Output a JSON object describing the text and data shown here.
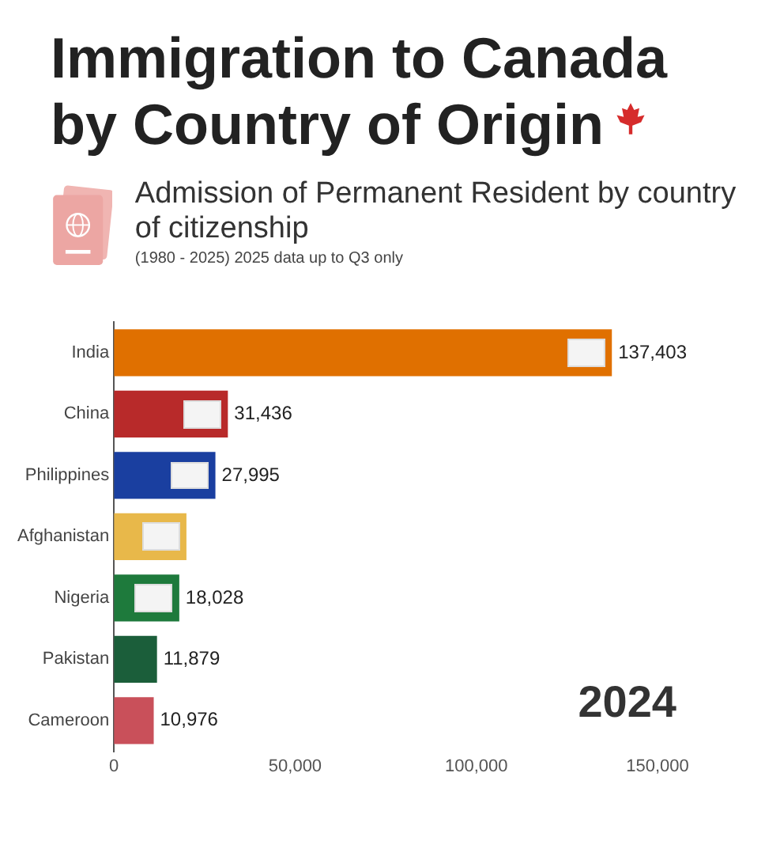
{
  "chart_data": {
    "type": "bar",
    "title": "Immigration to Canada by Country of Origin",
    "subtitle": "Admission of Permanent Resident by country of citizenship",
    "orientation": "horizontal",
    "categories": [
      "India",
      "China",
      "Philippines",
      "Afghanistan",
      "Nigeria",
      "Pakistan",
      "Cameroon"
    ],
    "values": [
      137403,
      31436,
      27995,
      20000,
      18028,
      11879,
      10976
    ],
    "colors": [
      "#e07000",
      "#b82a2a",
      "#1a3fa0",
      "#e8b84a",
      "#1e7a3c",
      "#1b5e3a",
      "#c9505a"
    ],
    "value_labels": [
      "137,403",
      "31,436",
      "27,995",
      null,
      "18,028",
      "11,879",
      "10,976"
    ],
    "xlim": [
      0,
      150000
    ],
    "xticks": [
      0,
      {
        "value": 50000,
        "label": "50,000"
      },
      {
        "value": 100000,
        "label": "100,000"
      },
      {
        "value": 150000,
        "label": "150,000"
      }
    ],
    "grid": false,
    "legend": false,
    "annotations": [
      "(1980 - 2025) 2025 data up to Q3 only",
      "2024"
    ]
  }
}
